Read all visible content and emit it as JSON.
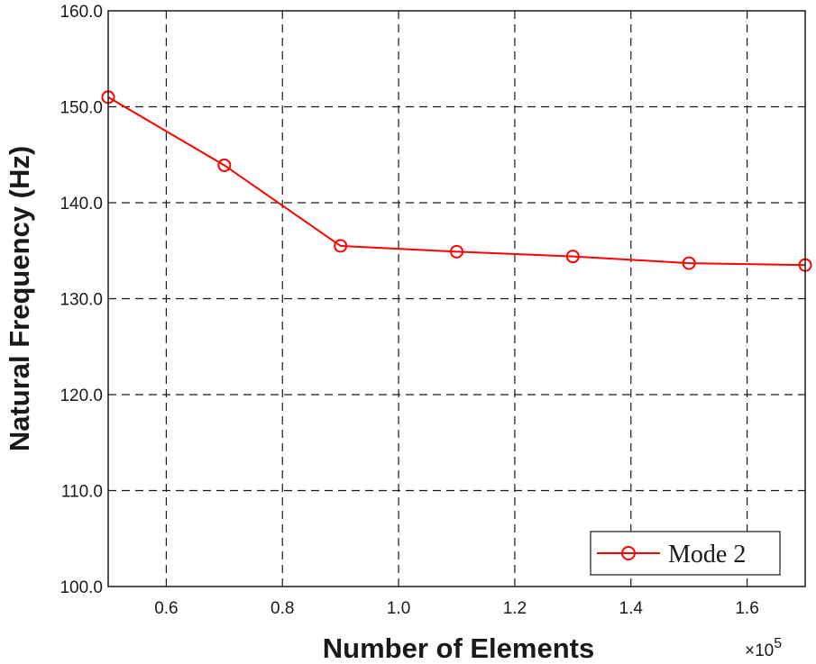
{
  "chart_data": {
    "type": "line",
    "xlabel": "Number of Elements",
    "ylabel": "Natural Frequency (Hz)",
    "x_multiplier_label": "×10",
    "x_multiplier_exponent": "5",
    "xlim": [
      0.5,
      1.7
    ],
    "ylim": [
      100,
      160
    ],
    "xticks": [
      "0.6",
      "0.8",
      "1.0",
      "1.2",
      "1.4",
      "1.6"
    ],
    "yticks": [
      "100.0",
      "110.0",
      "120.0",
      "130.0",
      "140.0",
      "150.0",
      "160.0"
    ],
    "grid": true,
    "legend_position": "bottom-right",
    "series": [
      {
        "name": "Mode 2",
        "color": "#ff0000",
        "marker": "circle",
        "x": [
          0.5,
          0.7,
          0.9,
          1.1,
          1.3,
          1.5,
          1.7
        ],
        "y": [
          151.0,
          143.9,
          135.5,
          134.9,
          134.4,
          133.7,
          133.5
        ]
      }
    ]
  }
}
